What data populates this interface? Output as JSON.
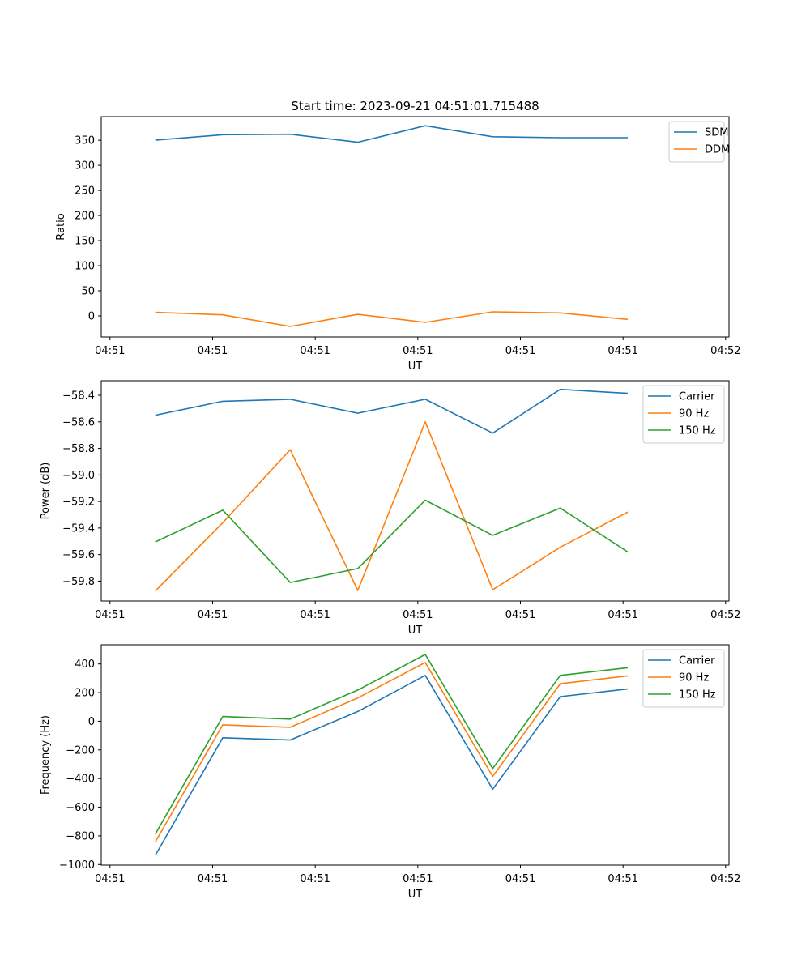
{
  "figure_title": "Start time: 2023-09-21 04:51:01.715488",
  "colors": {
    "blue": "#1f77b4",
    "orange": "#ff7f0e",
    "green": "#2ca02c"
  },
  "chart_data": [
    {
      "type": "line",
      "title": "Start time: 2023-09-21 04:51:01.715488",
      "xlabel": "UT",
      "ylabel": "Ratio",
      "x": [
        1,
        2,
        3,
        4,
        5,
        6,
        7,
        8
      ],
      "xlim": [
        0.2,
        9.5
      ],
      "xticks": [
        0.33,
        1.85,
        3.37,
        4.89,
        6.41,
        7.93,
        9.45
      ],
      "xtick_labels": [
        "04:51",
        "04:51",
        "04:51",
        "04:51",
        "04:51",
        "04:51",
        "04:52"
      ],
      "ylim": [
        -42,
        397
      ],
      "yticks": [
        0,
        50,
        100,
        150,
        200,
        250,
        300,
        350
      ],
      "ytick_labels": [
        "0",
        "50",
        "100",
        "150",
        "200",
        "250",
        "300",
        "350"
      ],
      "legend_position": "top-right",
      "series": [
        {
          "name": "SDM",
          "color": "#1f77b4",
          "values": [
            350,
            361,
            362,
            346,
            379,
            357,
            355,
            355
          ]
        },
        {
          "name": "DDM",
          "color": "#ff7f0e",
          "values": [
            7,
            2,
            -21,
            3,
            -13,
            8,
            6,
            -7
          ]
        }
      ]
    },
    {
      "type": "line",
      "xlabel": "UT",
      "ylabel": "Power (dB)",
      "x": [
        1,
        2,
        3,
        4,
        5,
        6,
        7,
        8
      ],
      "xlim": [
        0.2,
        9.5
      ],
      "xticks": [
        0.33,
        1.85,
        3.37,
        4.89,
        6.41,
        7.93,
        9.45
      ],
      "xtick_labels": [
        "04:51",
        "04:51",
        "04:51",
        "04:51",
        "04:51",
        "04:51",
        "04:52"
      ],
      "ylim": [
        -59.95,
        -58.29
      ],
      "yticks": [
        -59.8,
        -59.6,
        -59.4,
        -59.2,
        -59.0,
        -58.8,
        -58.6,
        -58.4
      ],
      "ytick_labels": [
        "−59.8",
        "−59.6",
        "−59.4",
        "−59.2",
        "−59.0",
        "−58.8",
        "−58.6",
        "−58.4"
      ],
      "legend_position": "top-right",
      "series": [
        {
          "name": "Carrier",
          "color": "#1f77b4",
          "values": [
            -58.55,
            -58.445,
            -58.43,
            -58.535,
            -58.43,
            -58.685,
            -58.355,
            -58.385
          ]
        },
        {
          "name": "90 Hz",
          "color": "#ff7f0e",
          "values": [
            -59.875,
            -59.36,
            -58.81,
            -59.87,
            -58.6,
            -59.865,
            -59.545,
            -59.28
          ]
        },
        {
          "name": "150 Hz",
          "color": "#2ca02c",
          "values": [
            -59.505,
            -59.265,
            -59.81,
            -59.705,
            -59.19,
            -59.455,
            -59.25,
            -59.58
          ]
        }
      ]
    },
    {
      "type": "line",
      "xlabel": "UT",
      "ylabel": "Frequency (Hz)",
      "x": [
        1,
        2,
        3,
        4,
        5,
        6,
        7,
        8
      ],
      "xlim": [
        0.2,
        9.5
      ],
      "xticks": [
        0.33,
        1.85,
        3.37,
        4.89,
        6.41,
        7.93,
        9.45
      ],
      "xtick_labels": [
        "04:51",
        "04:51",
        "04:51",
        "04:51",
        "04:51",
        "04:51",
        "04:52"
      ],
      "ylim": [
        -1004,
        534
      ],
      "yticks": [
        -1000,
        -800,
        -600,
        -400,
        -200,
        0,
        200,
        400
      ],
      "ytick_labels": [
        "−1000",
        "−800",
        "−600",
        "−400",
        "−200",
        "0",
        "200",
        "400"
      ],
      "legend_position": "top-right",
      "series": [
        {
          "name": "Carrier",
          "color": "#1f77b4",
          "values": [
            -936,
            -115,
            -131,
            68,
            320,
            -474,
            172,
            225
          ]
        },
        {
          "name": "90 Hz",
          "color": "#ff7f0e",
          "values": [
            -843,
            -25,
            -42,
            163,
            410,
            -385,
            262,
            317
          ]
        },
        {
          "name": "150 Hz",
          "color": "#2ca02c",
          "values": [
            -788,
            33,
            15,
            218,
            466,
            -330,
            320,
            374
          ]
        }
      ]
    }
  ]
}
